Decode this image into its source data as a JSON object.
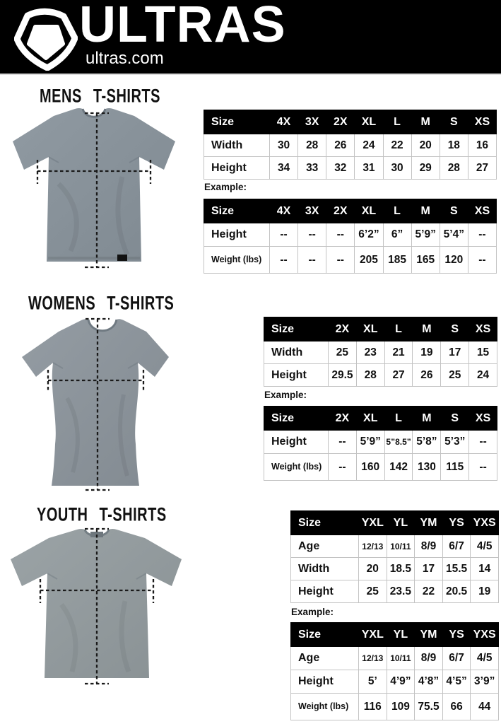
{
  "header": {
    "brand": "ULTRAS",
    "site": "ultras.com",
    "logo_icon": "pentagon-crest-icon",
    "bg_color": "#000000",
    "text_color": "#ffffff"
  },
  "colors": {
    "table_header_bg": "#000000",
    "table_border": "#c3c3c3",
    "shirt_gray_mens": "#87919a",
    "shirt_gray_womens": "#8b9299",
    "shirt_gray_youth": "#939c9f",
    "measure_line": "#1a1a1a"
  },
  "sections": [
    {
      "title": "MENS T-SHIRTS",
      "shirt_icon": "mens-tshirt-front",
      "size_table": {
        "columns": [
          "Size",
          "4X",
          "3X",
          "2X",
          "XL",
          "L",
          "M",
          "S",
          "XS"
        ],
        "rows": [
          {
            "label": "Width",
            "values": [
              "30",
              "28",
              "26",
              "24",
              "22",
              "20",
              "18",
              "16"
            ]
          },
          {
            "label": "Height",
            "values": [
              "34",
              "33",
              "32",
              "31",
              "30",
              "29",
              "28",
              "27"
            ]
          }
        ]
      },
      "example_label": "Example:",
      "example_table": {
        "columns": [
          "Size",
          "4X",
          "3X",
          "2X",
          "XL",
          "L",
          "M",
          "S",
          "XS"
        ],
        "rows": [
          {
            "label": "Height",
            "values": [
              "--",
              "--",
              "--",
              "6’2”",
              "6”",
              "5’9”",
              "5’4”",
              "--"
            ]
          },
          {
            "label": "Weight (lbs)",
            "values": [
              "--",
              "--",
              "--",
              "205",
              "185",
              "165",
              "120",
              "--"
            ]
          }
        ]
      }
    },
    {
      "title": "WOMENS T-SHIRTS",
      "shirt_icon": "womens-tshirt-front",
      "size_table": {
        "columns": [
          "Size",
          "2X",
          "XL",
          "L",
          "M",
          "S",
          "XS"
        ],
        "rows": [
          {
            "label": "Width",
            "values": [
              "25",
              "23",
              "21",
              "19",
              "17",
              "15"
            ]
          },
          {
            "label": "Height",
            "values": [
              "29.5",
              "28",
              "27",
              "26",
              "25",
              "24"
            ]
          }
        ]
      },
      "example_label": "Example:",
      "example_table": {
        "columns": [
          "Size",
          "2X",
          "XL",
          "L",
          "M",
          "S",
          "XS"
        ],
        "rows": [
          {
            "label": "Height",
            "values": [
              "--",
              "5’9”",
              "5”8.5”",
              "5’8”",
              "5’3”",
              "--"
            ]
          },
          {
            "label": "Weight (lbs)",
            "values": [
              "--",
              "160",
              "142",
              "130",
              "115",
              "--"
            ]
          }
        ]
      }
    },
    {
      "title": "YOUTH T-SHIRTS",
      "shirt_icon": "youth-tshirt-front",
      "size_table": {
        "columns": [
          "Size",
          "YXL",
          "YL",
          "YM",
          "YS",
          "YXS"
        ],
        "rows": [
          {
            "label": "Age",
            "values": [
              "12/13",
              "10/11",
              "8/9",
              "6/7",
              "4/5"
            ]
          },
          {
            "label": "Width",
            "values": [
              "20",
              "18.5",
              "17",
              "15.5",
              "14"
            ]
          },
          {
            "label": "Height",
            "values": [
              "25",
              "23.5",
              "22",
              "20.5",
              "19"
            ]
          }
        ]
      },
      "example_label": "Example:",
      "example_table": {
        "columns": [
          "Size",
          "YXL",
          "YL",
          "YM",
          "YS",
          "YXS"
        ],
        "rows": [
          {
            "label": "Age",
            "values": [
              "12/13",
              "10/11",
              "8/9",
              "6/7",
              "4/5"
            ]
          },
          {
            "label": "Height",
            "values": [
              "5’",
              "4’9”",
              "4’8”",
              "4’5”",
              "3’9”"
            ]
          },
          {
            "label": "Weight (lbs)",
            "values": [
              "116",
              "109",
              "75.5",
              "66",
              "44"
            ]
          }
        ]
      }
    }
  ]
}
